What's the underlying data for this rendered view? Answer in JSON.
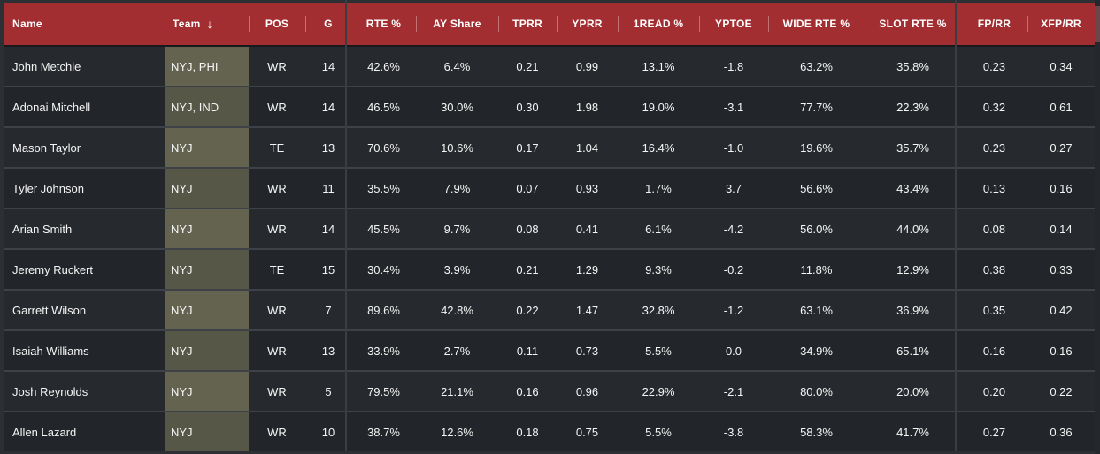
{
  "table": {
    "sort_icon": "↓",
    "sorted_column": "Team",
    "sort_direction": "descending",
    "columns": [
      {
        "key": "name",
        "label": "Name",
        "align": "left"
      },
      {
        "key": "team",
        "label": "Team",
        "align": "left"
      },
      {
        "key": "pos",
        "label": "POS",
        "align": "center"
      },
      {
        "key": "g",
        "label": "G",
        "align": "center"
      },
      {
        "key": "rte_pct",
        "label": "RTE %",
        "align": "center"
      },
      {
        "key": "ay_share",
        "label": "AY Share",
        "align": "center"
      },
      {
        "key": "tprr",
        "label": "TPRR",
        "align": "center"
      },
      {
        "key": "yprr",
        "label": "YPRR",
        "align": "center"
      },
      {
        "key": "read1_pct",
        "label": "1READ %",
        "align": "center"
      },
      {
        "key": "yptoe",
        "label": "YPTOE",
        "align": "center"
      },
      {
        "key": "wide_rte",
        "label": "WIDE RTE %",
        "align": "center"
      },
      {
        "key": "slot_rte",
        "label": "SLOT RTE %",
        "align": "center"
      },
      {
        "key": "fp_rr",
        "label": "FP/RR",
        "align": "center"
      },
      {
        "key": "xfp_rr",
        "label": "XFP/RR",
        "align": "center"
      }
    ],
    "rows": [
      [
        "John Metchie",
        "NYJ, PHI",
        "WR",
        "14",
        "42.6%",
        "6.4%",
        "0.21",
        "0.99",
        "13.1%",
        "-1.8",
        "63.2%",
        "35.8%",
        "0.23",
        "0.34"
      ],
      [
        "Adonai Mitchell",
        "NYJ, IND",
        "WR",
        "14",
        "46.5%",
        "30.0%",
        "0.30",
        "1.98",
        "19.0%",
        "-3.1",
        "77.7%",
        "22.3%",
        "0.32",
        "0.61"
      ],
      [
        "Mason Taylor",
        "NYJ",
        "TE",
        "13",
        "70.6%",
        "10.6%",
        "0.17",
        "1.04",
        "16.4%",
        "-1.0",
        "19.6%",
        "35.7%",
        "0.23",
        "0.27"
      ],
      [
        "Tyler Johnson",
        "NYJ",
        "WR",
        "11",
        "35.5%",
        "7.9%",
        "0.07",
        "0.93",
        "1.7%",
        "3.7",
        "56.6%",
        "43.4%",
        "0.13",
        "0.16"
      ],
      [
        "Arian Smith",
        "NYJ",
        "WR",
        "14",
        "45.5%",
        "9.7%",
        "0.08",
        "0.41",
        "6.1%",
        "-4.2",
        "56.0%",
        "44.0%",
        "0.08",
        "0.14"
      ],
      [
        "Jeremy Ruckert",
        "NYJ",
        "TE",
        "15",
        "30.4%",
        "3.9%",
        "0.21",
        "1.29",
        "9.3%",
        "-0.2",
        "11.8%",
        "12.9%",
        "0.38",
        "0.33"
      ],
      [
        "Garrett Wilson",
        "NYJ",
        "WR",
        "7",
        "89.6%",
        "42.8%",
        "0.22",
        "1.47",
        "32.8%",
        "-1.2",
        "63.1%",
        "36.9%",
        "0.35",
        "0.42"
      ],
      [
        "Isaiah Williams",
        "NYJ",
        "WR",
        "13",
        "33.9%",
        "2.7%",
        "0.11",
        "0.73",
        "5.5%",
        "0.0",
        "34.9%",
        "65.1%",
        "0.16",
        "0.16"
      ],
      [
        "Josh Reynolds",
        "NYJ",
        "WR",
        "5",
        "79.5%",
        "21.1%",
        "0.16",
        "0.96",
        "22.9%",
        "-2.1",
        "80.0%",
        "20.0%",
        "0.20",
        "0.22"
      ],
      [
        "Allen Lazard",
        "NYJ",
        "WR",
        "10",
        "38.7%",
        "12.6%",
        "0.18",
        "0.75",
        "5.5%",
        "-3.8",
        "58.3%",
        "41.7%",
        "0.27",
        "0.36"
      ]
    ]
  },
  "colors": {
    "header_background": "#a32e31",
    "row_background_odd": "#26292d",
    "row_background_even": "#222529",
    "team_cell_odd": "#636350",
    "team_cell_even": "#575747",
    "row_separator": "#3e4145",
    "text": "#f5f5f5"
  }
}
